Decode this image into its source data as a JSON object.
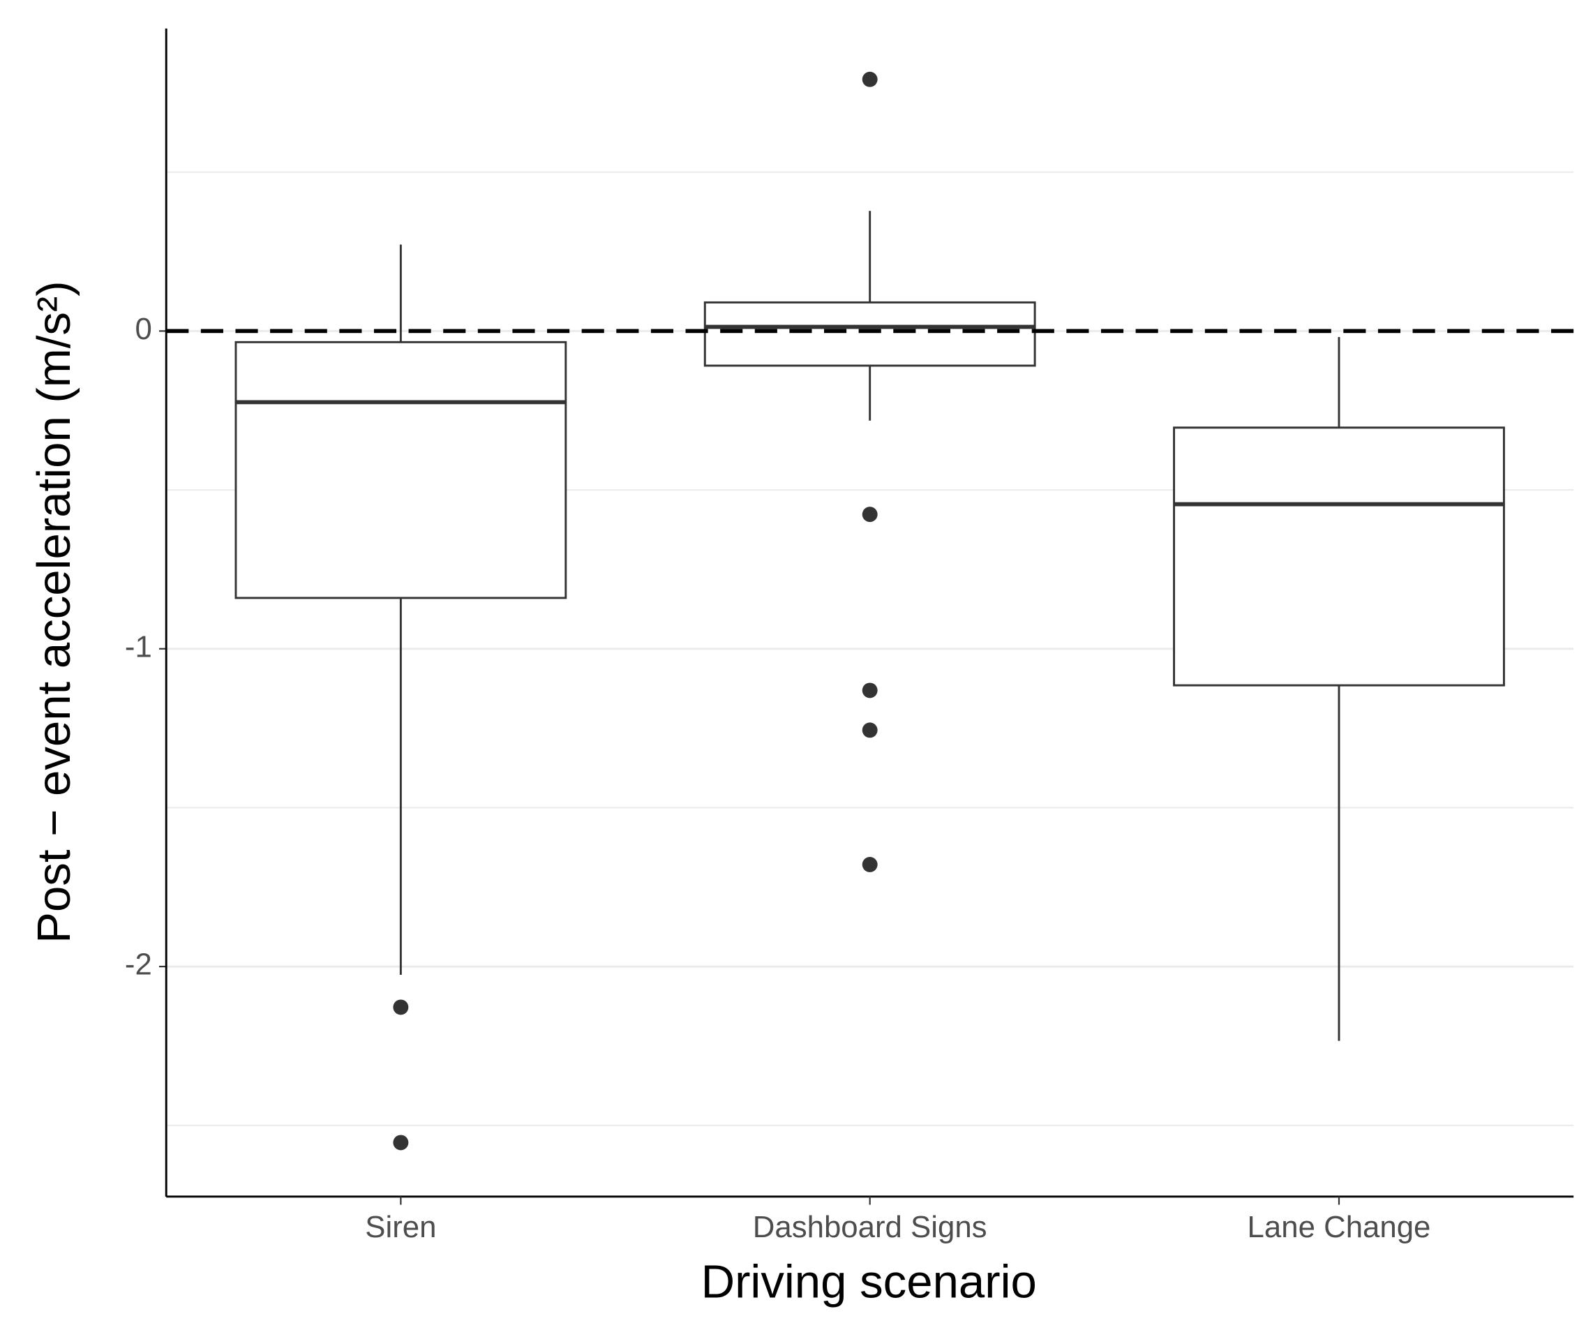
{
  "chart_data": {
    "type": "box",
    "x_label": "Driving scenario",
    "y_label": "Post − event acceleration (m/s²)",
    "categories": [
      "Siren",
      "Dashboard Signs",
      "Lane Change"
    ],
    "boxes": [
      {
        "whisker_low": -2.026,
        "q1": -0.84,
        "median": -0.224,
        "q3": -0.035,
        "whisker_high": 0.272,
        "outliers": [
          -2.128,
          -2.554
        ]
      },
      {
        "whisker_low": -0.282,
        "q1": -0.109,
        "median": 0.013,
        "q3": 0.09,
        "whisker_high": 0.378,
        "outliers": [
          0.792,
          -0.577,
          -1.131,
          -1.256,
          -1.679
        ]
      },
      {
        "whisker_low": -2.234,
        "q1": -1.115,
        "median": -0.545,
        "q3": -0.304,
        "whisker_high": -0.019,
        "outliers": []
      }
    ],
    "reference_line": 0,
    "ylim": [
      -2.724,
      0.952
    ],
    "yticks": [
      -2,
      -1,
      0
    ],
    "minor_gridlines": [
      -2.5,
      -1.5,
      -0.5,
      0.5
    ],
    "grid": true,
    "box_fill": "#ffffff",
    "line_color": "#333333",
    "outlier_color": "#333333"
  }
}
